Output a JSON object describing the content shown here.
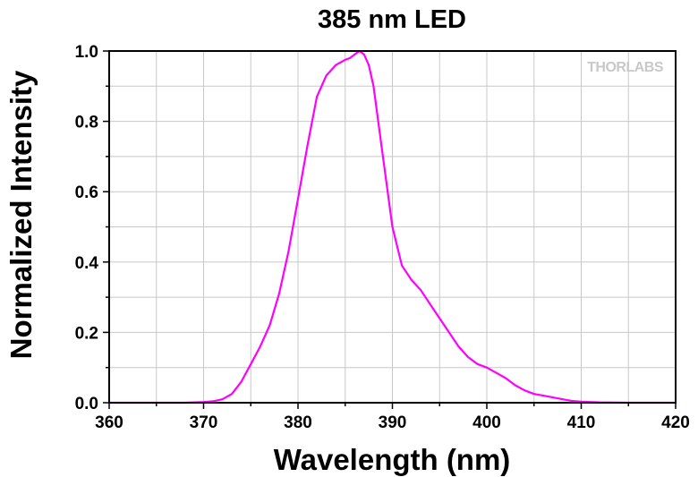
{
  "chart_data": {
    "type": "line",
    "title": "385 nm LED",
    "xlabel": "Wavelength (nm)",
    "ylabel": "Normalized Intensity",
    "xlim": [
      360,
      420
    ],
    "ylim": [
      0,
      1.0
    ],
    "x_ticks": [
      "360",
      "370",
      "380",
      "390",
      "400",
      "410",
      "420"
    ],
    "y_ticks": [
      "0.0",
      "0.2",
      "0.4",
      "0.6",
      "0.8",
      "1.0"
    ],
    "grid": true,
    "line_color": "#ff00ff",
    "logo": "THORLABS",
    "series": [
      {
        "x": [
          360,
          365,
          368,
          370,
          371,
          372,
          373,
          374,
          375,
          376,
          377,
          378,
          379,
          380,
          381,
          382,
          383,
          384,
          385,
          385.5,
          386,
          386.5,
          387,
          387.5,
          388,
          389,
          390,
          391,
          392,
          393,
          394,
          395,
          396,
          397,
          398,
          399,
          400,
          401,
          402,
          403,
          404,
          405,
          406,
          407,
          408,
          409,
          410,
          412,
          415,
          420
        ],
        "y": [
          0.0,
          0.0,
          0.0,
          0.002,
          0.004,
          0.01,
          0.025,
          0.06,
          0.11,
          0.16,
          0.22,
          0.31,
          0.43,
          0.58,
          0.73,
          0.87,
          0.93,
          0.96,
          0.975,
          0.98,
          0.99,
          1.0,
          0.99,
          0.96,
          0.9,
          0.7,
          0.5,
          0.39,
          0.35,
          0.32,
          0.28,
          0.24,
          0.2,
          0.16,
          0.13,
          0.11,
          0.1,
          0.085,
          0.07,
          0.05,
          0.035,
          0.025,
          0.02,
          0.015,
          0.01,
          0.005,
          0.003,
          0.001,
          0.0,
          0.0
        ]
      }
    ]
  }
}
